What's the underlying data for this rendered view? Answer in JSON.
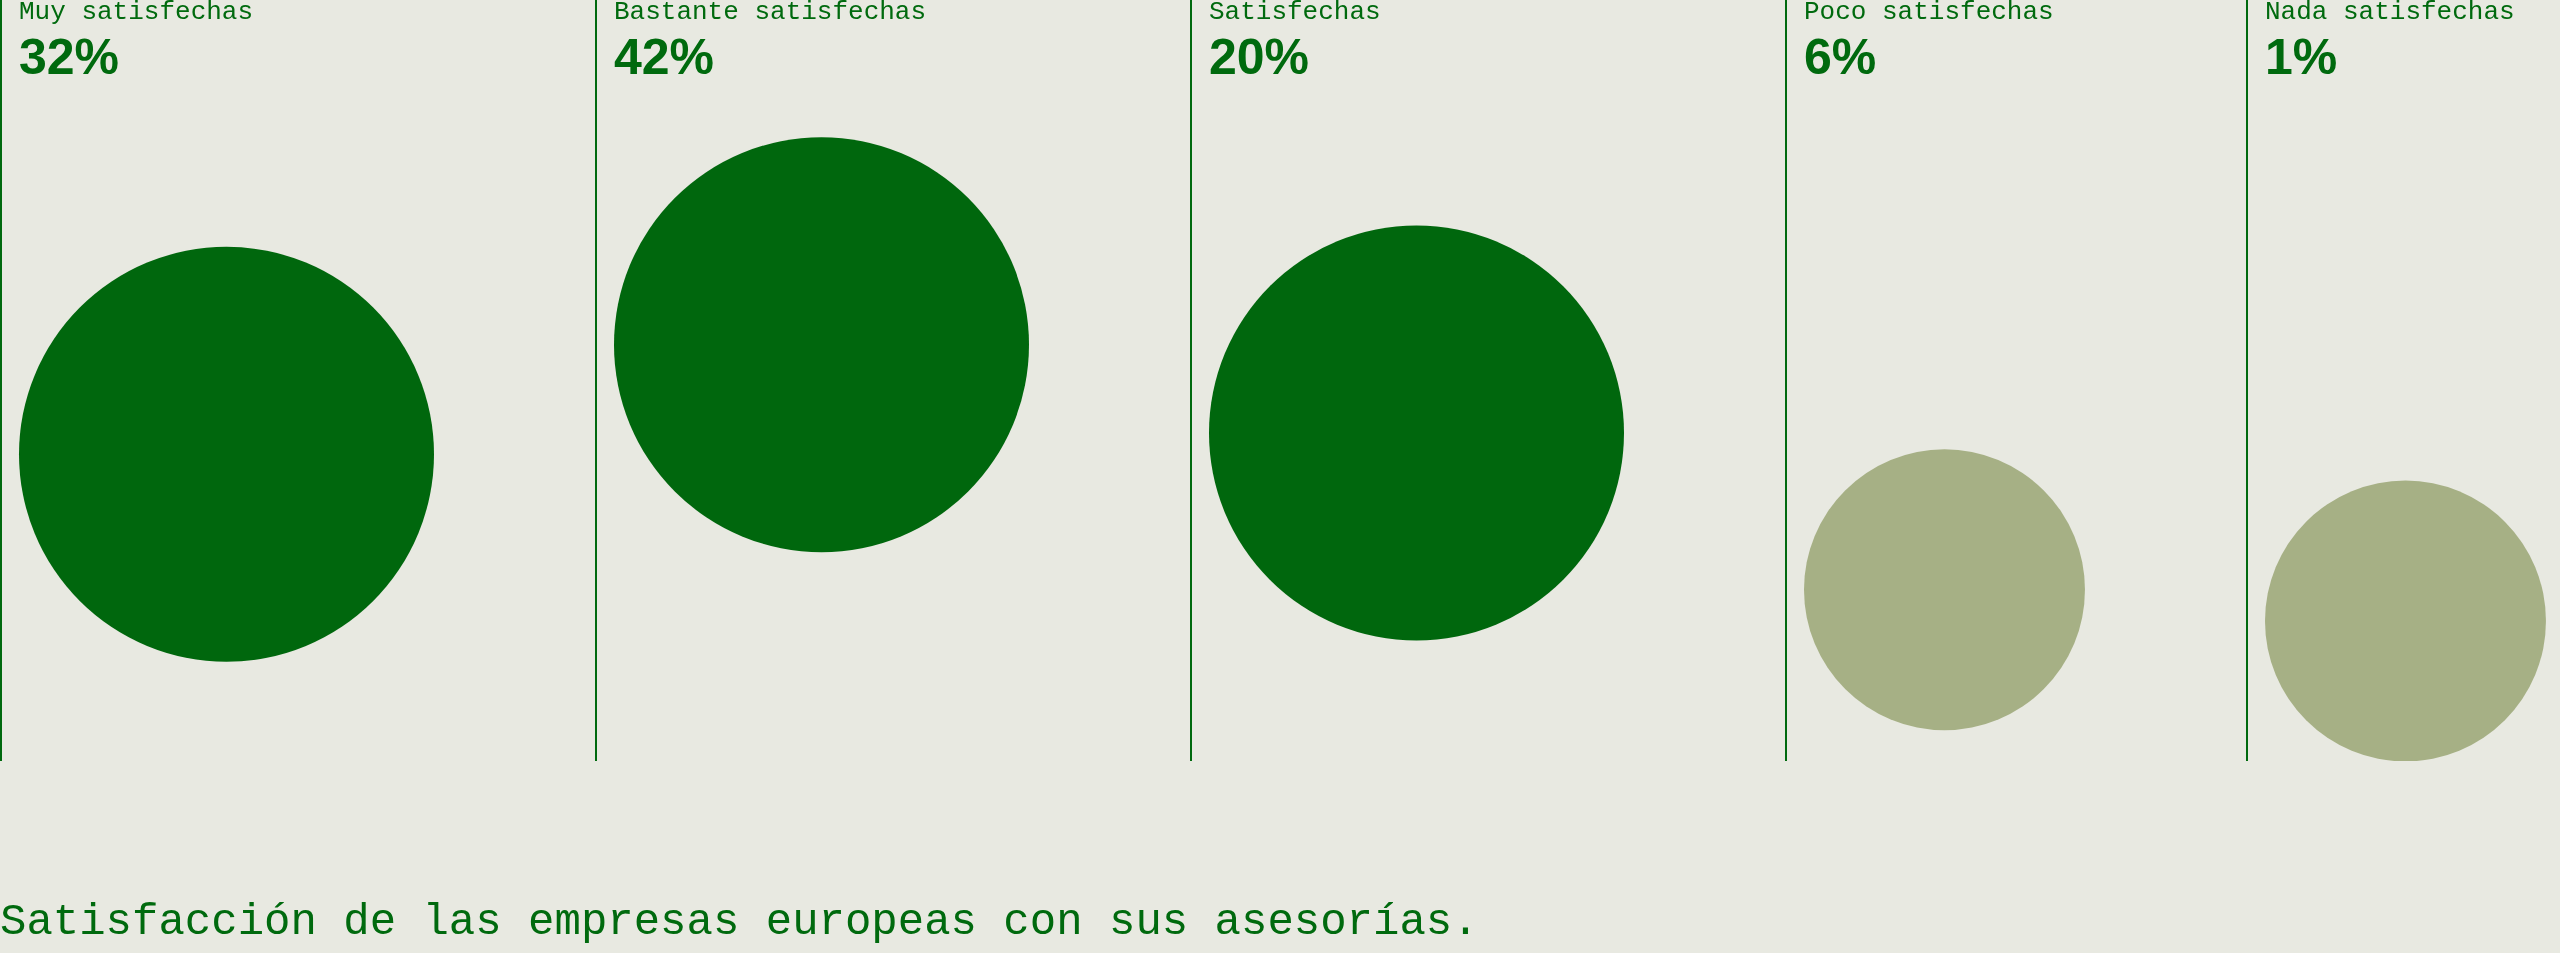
{
  "chart_data": {
    "type": "other",
    "title": "Satisfacción de las empresas europeas con sus asesorías.",
    "categories": [
      "Muy satisfechas",
      "Bastante satisfechas",
      "Satisfechas",
      "Poco satisfechas",
      "Nada satisfechas"
    ],
    "values": [
      32,
      42,
      20,
      6,
      1
    ],
    "value_labels": [
      "32%",
      "42%",
      "20%",
      "6%",
      "1%"
    ],
    "colors": [
      "#00670d",
      "#00670d",
      "#00670d",
      "#a6b085",
      "#a6b085"
    ]
  }
}
